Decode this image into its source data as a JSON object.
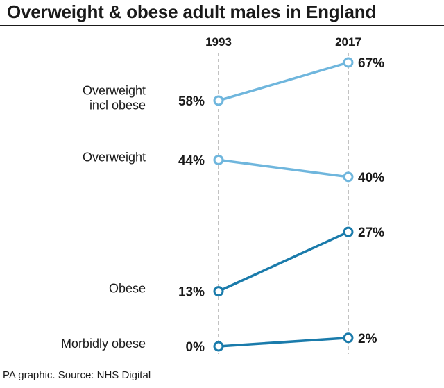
{
  "header": {
    "title": "Overweight & obese adult males in England"
  },
  "footer": {
    "source": "PA graphic. Source: NHS Digital"
  },
  "chart_data": {
    "type": "line",
    "chart_style": "slope",
    "title": "Overweight & obese adult males in England",
    "x": [
      "1993",
      "2017"
    ],
    "unit": "%",
    "series": [
      {
        "name": "Overweight incl obese",
        "label_lines": [
          "Overweight",
          "incl obese"
        ],
        "values": [
          58,
          67
        ],
        "value_labels": [
          "58%",
          "67%"
        ],
        "color": "#6fb6dd"
      },
      {
        "name": "Overweight",
        "label_lines": [
          "Overweight"
        ],
        "values": [
          44,
          40
        ],
        "value_labels": [
          "44%",
          "40%"
        ],
        "color": "#6fb6dd"
      },
      {
        "name": "Obese",
        "label_lines": [
          "Obese"
        ],
        "values": [
          13,
          27
        ],
        "value_labels": [
          "13%",
          "27%"
        ],
        "color": "#1a7bab"
      },
      {
        "name": "Morbidly obese",
        "label_lines": [
          "Morbidly obese"
        ],
        "values": [
          0,
          2
        ],
        "value_labels": [
          "0%",
          "2%"
        ],
        "color": "#1a7bab"
      }
    ],
    "ylim": [
      0,
      67
    ],
    "grid": false,
    "legend": "none"
  }
}
